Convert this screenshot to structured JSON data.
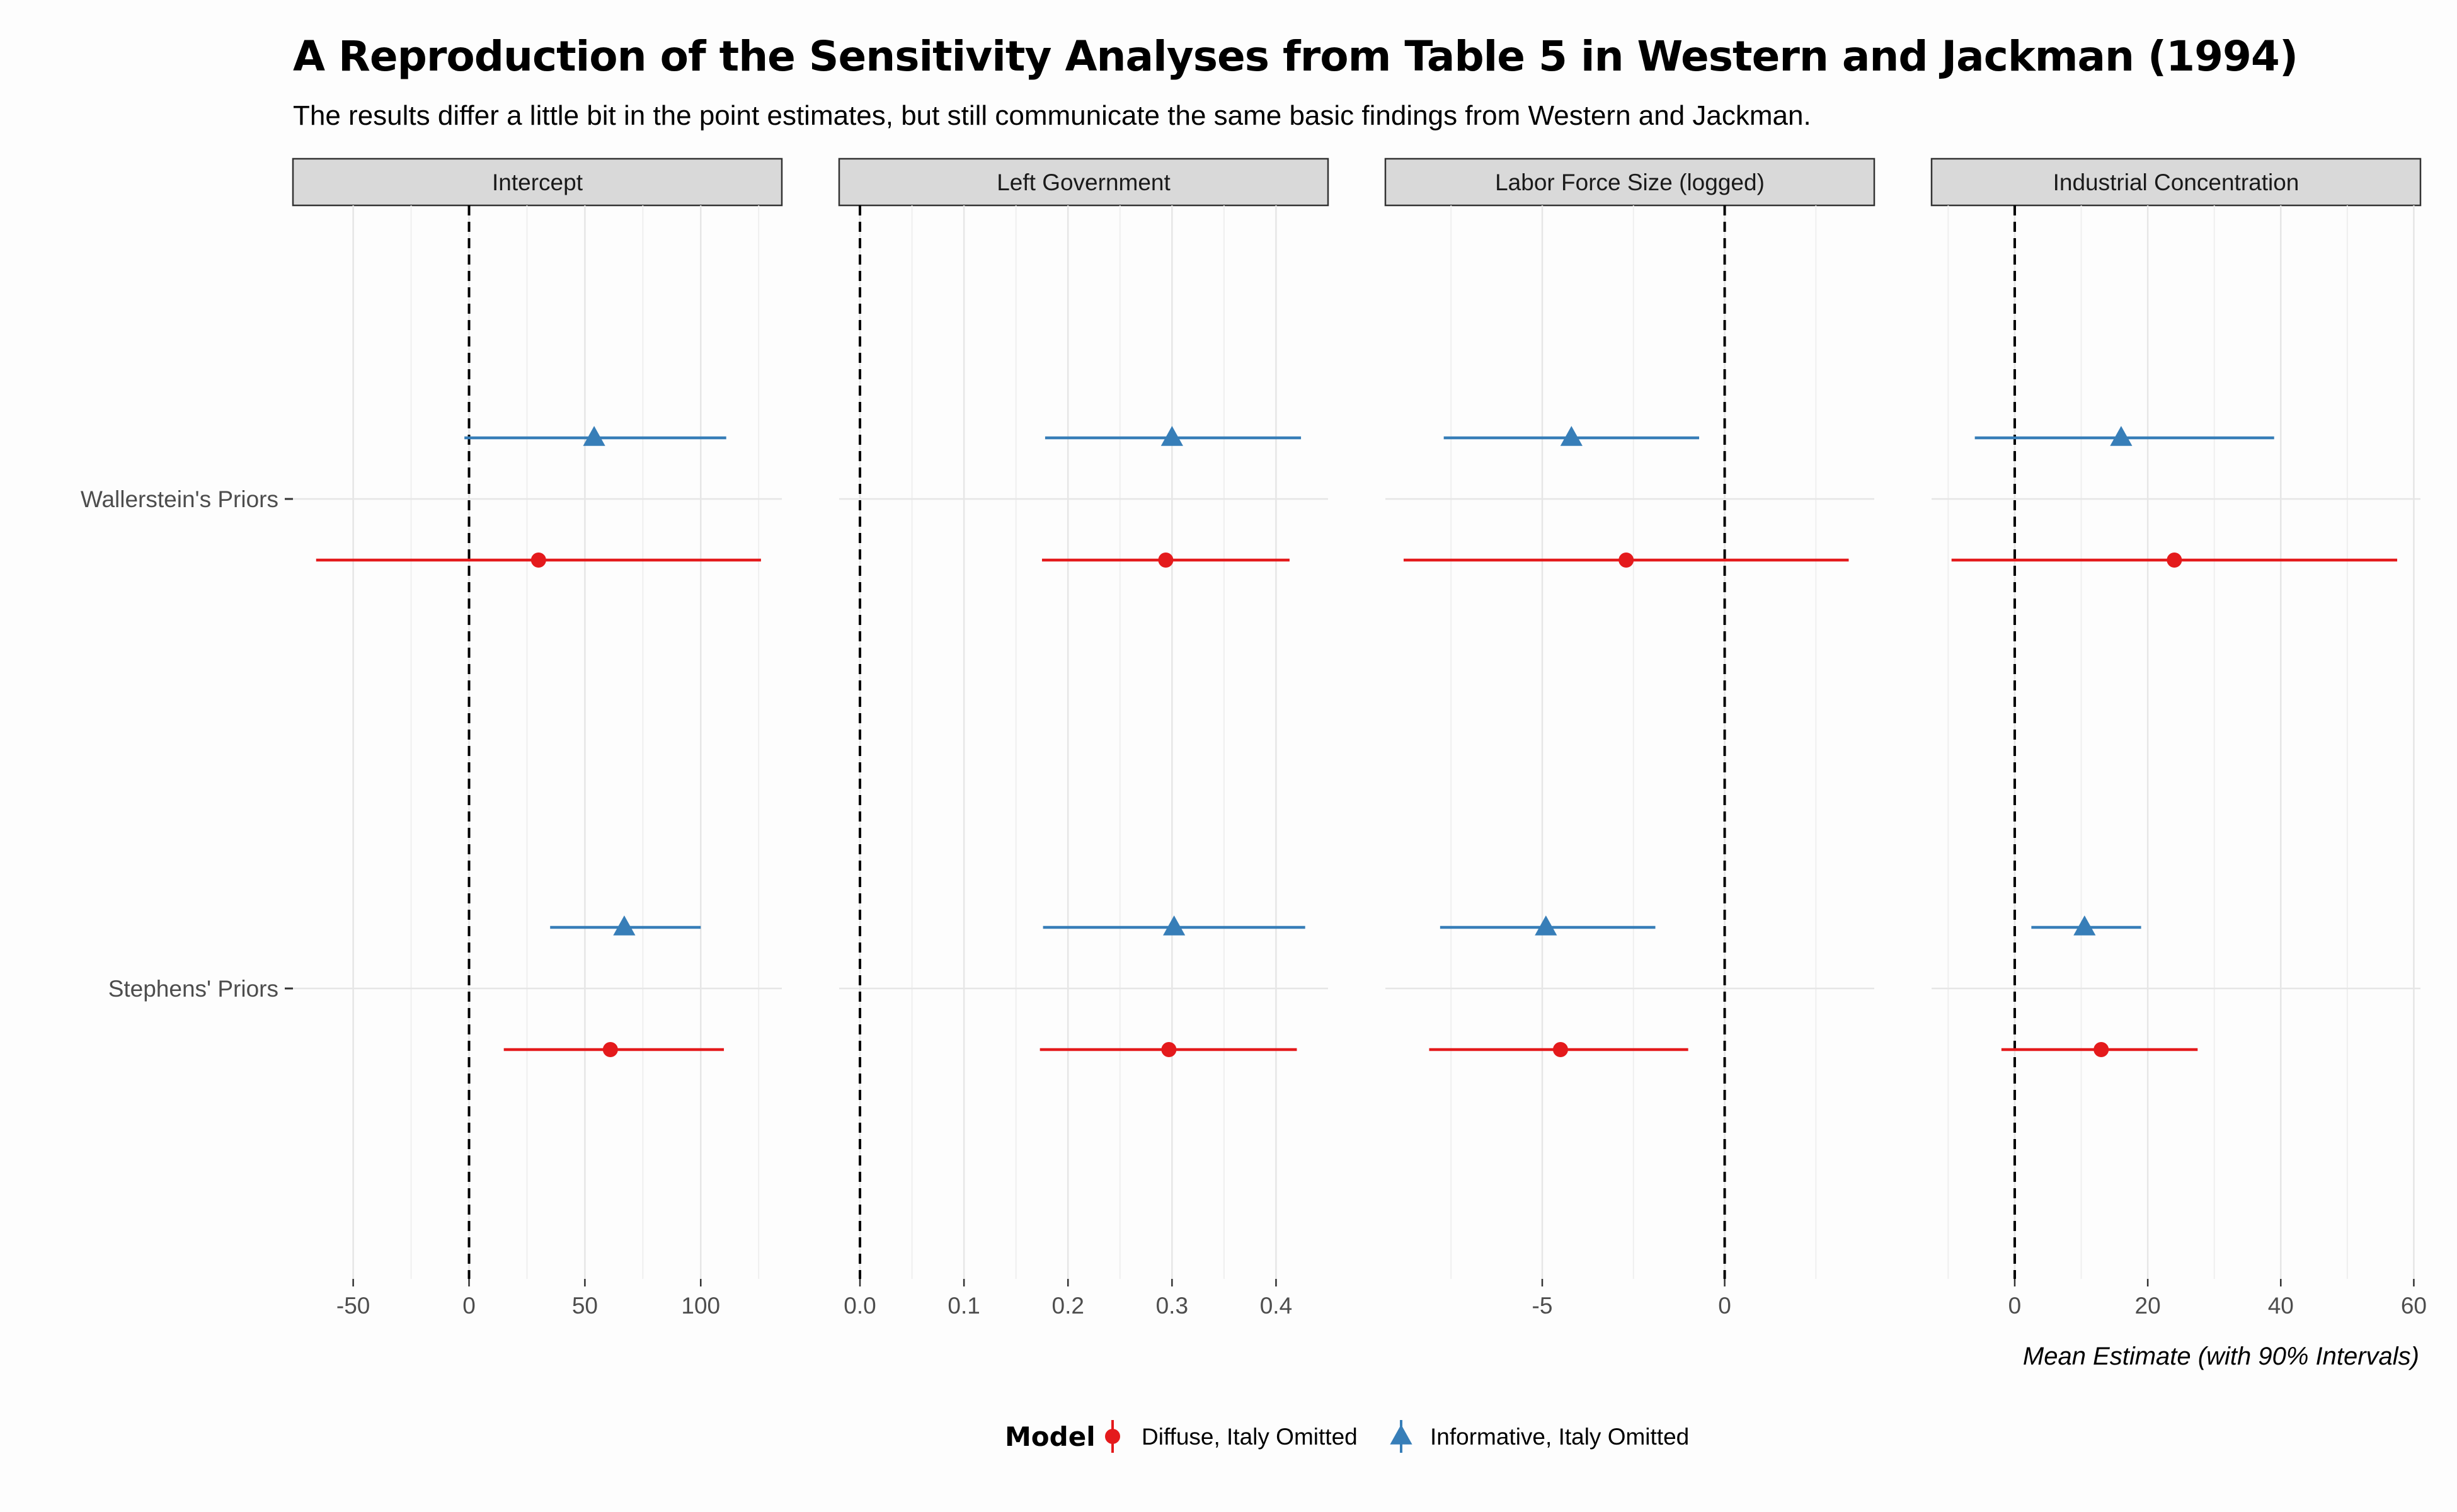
{
  "chart_data": {
    "type": "pointrange",
    "title": "A Reproduction of the Sensitivity Analyses from Table 5 in Western and Jackman (1994)",
    "subtitle": "The results differ a little bit in the point estimates, but still communicate the same basic findings from Western and Jackman.",
    "caption": "Mean Estimate (with 90% Intervals)",
    "reference_line": 0,
    "categories": [
      "Wallerstein's Priors",
      "Stephens' Priors"
    ],
    "legend": {
      "title": "Model",
      "position": "bottom",
      "entries": [
        {
          "label": "Diffuse, Italy Omitted",
          "color": "#e41a1c",
          "shape": "circle"
        },
        {
          "label": "Informative, Italy Omitted",
          "color": "#377eb8",
          "shape": "triangle"
        }
      ]
    },
    "panels": [
      {
        "label": "Intercept",
        "xlim": [
          -76,
          135
        ],
        "ticks": [
          -50,
          0,
          50,
          100
        ],
        "tick_labels": [
          "-50",
          "0",
          "50",
          "100"
        ],
        "minor_ticks": [
          -25,
          25,
          75,
          125
        ],
        "series": [
          {
            "name": "Diffuse, Italy Omitted",
            "points": [
              {
                "category": "Wallerstein's Priors",
                "estimate": 30,
                "low": -66,
                "high": 126
              },
              {
                "category": "Stephens' Priors",
                "estimate": 61,
                "low": 15,
                "high": 110
              }
            ]
          },
          {
            "name": "Informative, Italy Omitted",
            "points": [
              {
                "category": "Wallerstein's Priors",
                "estimate": 54,
                "low": -2,
                "high": 111
              },
              {
                "category": "Stephens' Priors",
                "estimate": 67,
                "low": 35,
                "high": 100
              }
            ]
          }
        ]
      },
      {
        "label": "Left Government",
        "xlim": [
          -0.02,
          0.45
        ],
        "ticks": [
          0,
          0.1,
          0.2,
          0.3,
          0.4
        ],
        "tick_labels": [
          "0.0",
          "0.1",
          "0.2",
          "0.3",
          "0.4"
        ],
        "minor_ticks": [
          0.05,
          0.15,
          0.25,
          0.35
        ],
        "series": [
          {
            "name": "Diffuse, Italy Omitted",
            "points": [
              {
                "category": "Wallerstein's Priors",
                "estimate": 0.294,
                "low": 0.175,
                "high": 0.413
              },
              {
                "category": "Stephens' Priors",
                "estimate": 0.297,
                "low": 0.173,
                "high": 0.42
              }
            ]
          },
          {
            "name": "Informative, Italy Omitted",
            "points": [
              {
                "category": "Wallerstein's Priors",
                "estimate": 0.3,
                "low": 0.178,
                "high": 0.424
              },
              {
                "category": "Stephens' Priors",
                "estimate": 0.302,
                "low": 0.176,
                "high": 0.428
              }
            ]
          }
        ]
      },
      {
        "label": "Labor Force Size (logged)",
        "xlim": [
          -9.3,
          4.1
        ],
        "ticks": [
          -5,
          0
        ],
        "tick_labels": [
          "-5",
          "0"
        ],
        "minor_ticks": [
          -7.5,
          -2.5,
          2.5
        ],
        "series": [
          {
            "name": "Diffuse, Italy Omitted",
            "points": [
              {
                "category": "Wallerstein's Priors",
                "estimate": -2.7,
                "low": -8.8,
                "high": 3.4
              },
              {
                "category": "Stephens' Priors",
                "estimate": -4.5,
                "low": -8.1,
                "high": -1.0
              }
            ]
          },
          {
            "name": "Informative, Italy Omitted",
            "points": [
              {
                "category": "Wallerstein's Priors",
                "estimate": -4.2,
                "low": -7.7,
                "high": -0.7
              },
              {
                "category": "Stephens' Priors",
                "estimate": -4.9,
                "low": -7.8,
                "high": -1.9
              }
            ]
          }
        ]
      },
      {
        "label": "Industrial Concentration",
        "xlim": [
          -12.5,
          61
        ],
        "ticks": [
          0,
          20,
          40,
          60
        ],
        "tick_labels": [
          "0",
          "20",
          "40",
          "60"
        ],
        "minor_ticks": [
          -10,
          10,
          30,
          50
        ],
        "series": [
          {
            "name": "Diffuse, Italy Omitted",
            "points": [
              {
                "category": "Wallerstein's Priors",
                "estimate": 24,
                "low": -9.5,
                "high": 57.5
              },
              {
                "category": "Stephens' Priors",
                "estimate": 13,
                "low": -2,
                "high": 27.5
              }
            ]
          },
          {
            "name": "Informative, Italy Omitted",
            "points": [
              {
                "category": "Wallerstein's Priors",
                "estimate": 16,
                "low": -6,
                "high": 39
              },
              {
                "category": "Stephens' Priors",
                "estimate": 10.5,
                "low": 2.5,
                "high": 19
              }
            ]
          }
        ]
      }
    ],
    "grid": true
  }
}
